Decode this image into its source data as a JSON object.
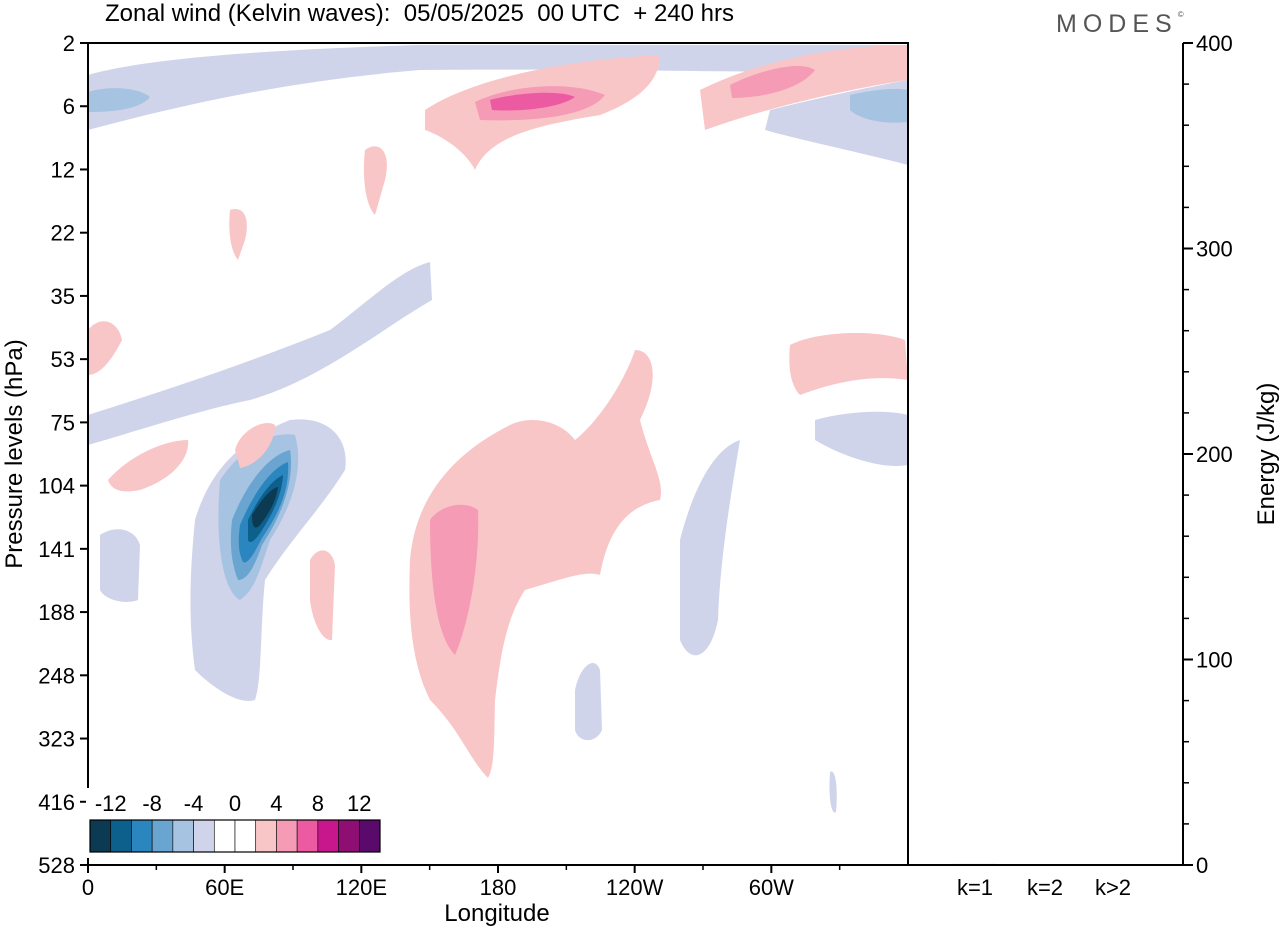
{
  "title": "Zonal wind (Kelvin waves):  05/05/2025  00 UTC  + 240 hrs",
  "brand": "MODES",
  "brand_mark": "©",
  "chart_data": [
    {
      "type": "heatmap",
      "name": "zonal-wind-longitude-pressure",
      "xlabel": "Longitude",
      "ylabel": "Pressure levels (hPa)",
      "x_ticks": [
        "0",
        "60E",
        "120E",
        "180",
        "120W",
        "60W"
      ],
      "y_ticks": [
        "2",
        "6",
        "12",
        "22",
        "35",
        "53",
        "75",
        "104",
        "141",
        "188",
        "248",
        "323",
        "416",
        "528"
      ],
      "grid": false,
      "legend": {
        "placement": "bottom-left",
        "labels": [
          "-12",
          "-8",
          "-4",
          "0",
          "4",
          "8",
          "12"
        ],
        "colors": [
          "#0b3a52",
          "#0d5f8c",
          "#2b86c0",
          "#6aa4d0",
          "#a7c3e2",
          "#d0d4ea",
          "#ffffff",
          "#ffffff",
          "#f9c6c8",
          "#f59bb6",
          "#ec5ba1",
          "#c8168c",
          "#8f0e73",
          "#5a0a6a"
        ]
      },
      "features": [
        {
          "sign": "negative",
          "level": 4,
          "lon": 80,
          "p": 125
        },
        {
          "sign": "positive",
          "level": 2,
          "lon": 157,
          "p": 155
        },
        {
          "sign": "positive",
          "level": 3,
          "lon": 190,
          "p": 6
        },
        {
          "sign": "negative",
          "level": 2,
          "lon": 20,
          "p": 5
        }
      ]
    },
    {
      "type": "bar",
      "name": "kelvin-wave-energy",
      "ylabel": "Energy (J/kg)",
      "ylim": [
        0,
        400
      ],
      "y_ticks": [
        "0",
        "100",
        "200",
        "300",
        "400"
      ],
      "categories": [
        "k=1",
        "k=2",
        "k>2"
      ],
      "values": [
        0.5,
        0.2,
        0.3
      ]
    }
  ]
}
